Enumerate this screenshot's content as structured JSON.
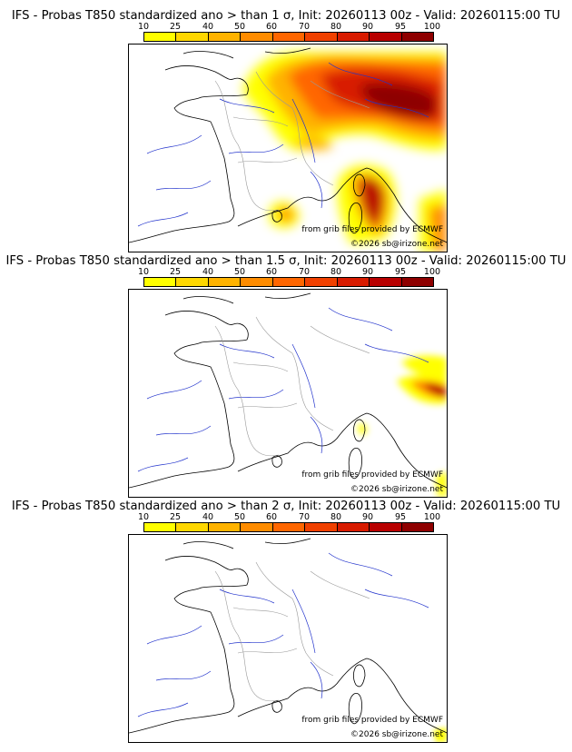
{
  "colorbar": {
    "labels": [
      "10",
      "25",
      "40",
      "50",
      "60",
      "70",
      "80",
      "90",
      "95",
      "100"
    ],
    "colors": [
      "#ffff00",
      "#ffd700",
      "#ffb300",
      "#ff8c00",
      "#ff6600",
      "#f04000",
      "#d81b00",
      "#b80000",
      "#8e0000",
      "#5c0000"
    ]
  },
  "panels": [
    {
      "title": "IFS - Probas T850  standardized ano > than 1 σ, Init: 20260113 00z - Valid: 20260115:00 TU",
      "credit_source": "from grib files provided by ECMWF",
      "credit_copyright": "©2026 sb@irizone.net",
      "level": "high"
    },
    {
      "title": "IFS - Probas T850  standardized ano > than 1.5 σ, Init: 20260113 00z - Valid: 20260115:00 TU",
      "credit_source": "from grib files provided by ECMWF",
      "credit_copyright": "©2026 sb@irizone.net",
      "level": "medium"
    },
    {
      "title": "IFS - Probas T850  standardized ano > than 2 σ, Init: 20260113 00z - Valid: 20260115:00 TU",
      "credit_source": "from grib files provided by ECMWF",
      "credit_copyright": "©2026 sb@irizone.net",
      "level": "low"
    }
  ]
}
